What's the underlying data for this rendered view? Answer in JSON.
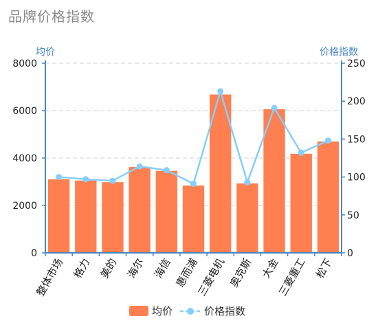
{
  "title": "品牌价格指数",
  "colors": {
    "bar": "#ff7f50",
    "line": "#87cefa",
    "axis": "#4a86c5",
    "grid": "#d0d0d0"
  },
  "chart_data": {
    "type": "bar",
    "categories": [
      "整体市场",
      "格力",
      "美的",
      "海尔",
      "海信",
      "惠而浦",
      "三菱电机",
      "奥克斯",
      "大金",
      "三菱重工",
      "松下"
    ],
    "series": [
      {
        "name": "均价",
        "type": "bar",
        "axis": "left",
        "values": [
          3100,
          3050,
          2980,
          3620,
          3460,
          2840,
          6680,
          2930,
          6060,
          4180,
          4700
        ]
      },
      {
        "name": "价格指数",
        "type": "line",
        "axis": "right",
        "values": [
          100,
          97,
          95,
          114,
          109,
          91,
          213,
          93,
          191,
          132,
          148
        ]
      }
    ],
    "ylabel_left": "均价",
    "ylabel_right": "价格指数",
    "yticks_left": [
      "0",
      "2000",
      "4000",
      "6000",
      "8000"
    ],
    "yticks_right": [
      "0",
      "50",
      "100",
      "150",
      "200",
      "250"
    ],
    "ylim_left": [
      0,
      8000
    ],
    "ylim_right": [
      0,
      250
    ],
    "grid": true,
    "legend_position": "bottom"
  }
}
